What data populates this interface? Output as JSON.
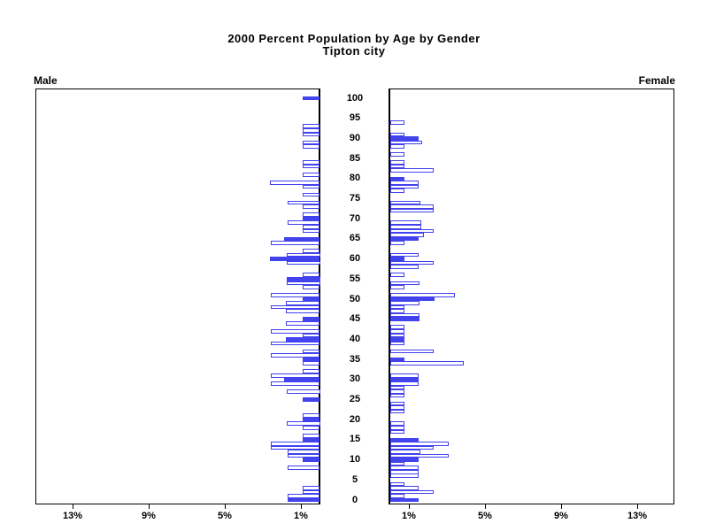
{
  "title": {
    "line1": "2000 Percent Population by Age by Gender",
    "line2": "Tipton city"
  },
  "panel_labels": {
    "left": "Male",
    "right": "Female"
  },
  "axes": {
    "age_axis_labels": [
      0,
      5,
      10,
      15,
      20,
      25,
      30,
      35,
      40,
      45,
      50,
      55,
      60,
      65,
      70,
      75,
      80,
      85,
      90,
      95,
      100
    ],
    "pct_ticks": [
      {
        "value": 1,
        "label": "1%"
      },
      {
        "value": 5,
        "label": "5%"
      },
      {
        "value": 9,
        "label": "9%"
      },
      {
        "value": 13,
        "label": "13%"
      }
    ],
    "pct_axis_max": 15
  },
  "colors": {
    "bar_fill": "#4343ee",
    "bar_outline": "#4141ee",
    "axis": "#000000",
    "background": "#ffffff",
    "text": "#000000"
  },
  "chart_data": {
    "type": "bar",
    "subtype": "population-pyramid",
    "title": "2000 Percent Population by Age by Gender",
    "subtitle": "Tipton city",
    "orientation": "horizontal-mirrored",
    "x_unit": "percent of population",
    "xlim_each_side": [
      0,
      15
    ],
    "x_tick_values": [
      1,
      5,
      9,
      13
    ],
    "age_note": "array index = age in single years, 0 through 100; bars at ages divisible by 5 are solid blue, others are blue-outlined white; value 0 means no bar drawn",
    "series": [
      {
        "name": "Male",
        "side": "left",
        "values": [
          1.7,
          1.7,
          0.9,
          0.9,
          0,
          0,
          0,
          0,
          1.7,
          0,
          0.9,
          1.7,
          1.7,
          2.6,
          2.6,
          0.9,
          0.9,
          0,
          0.9,
          1.75,
          0.9,
          0.9,
          0,
          0,
          0,
          0.9,
          0,
          1.75,
          0,
          2.6,
          1.9,
          2.6,
          0.9,
          0,
          0.9,
          0.9,
          2.6,
          0.9,
          0,
          2.6,
          1.8,
          0.9,
          2.6,
          0,
          1.8,
          0.9,
          0,
          1.8,
          2.6,
          1.8,
          0.9,
          2.6,
          0,
          0.9,
          1.75,
          1.75,
          0.9,
          0,
          0,
          1.75,
          2.65,
          1.75,
          0.9,
          0,
          2.6,
          1.9,
          0,
          0.9,
          0.9,
          1.7,
          0.9,
          0.9,
          0,
          0.9,
          1.7,
          0,
          0.9,
          0,
          0.9,
          2.65,
          0,
          0.9,
          0,
          0.9,
          0.9,
          0,
          0,
          0,
          0.9,
          0.9,
          0,
          0.9,
          0.9,
          0.9,
          0,
          0,
          0,
          0,
          0,
          0,
          0.9
        ]
      },
      {
        "name": "Female",
        "side": "right",
        "values": [
          1.5,
          0.75,
          2.3,
          1.5,
          0.75,
          0,
          1.5,
          1.5,
          1.5,
          0.75,
          1.5,
          3.1,
          1.6,
          2.3,
          3.1,
          1.5,
          0,
          0.75,
          0.75,
          0.75,
          0,
          0,
          0.75,
          0.75,
          0.75,
          0,
          0.75,
          0.75,
          0.75,
          1.5,
          1.5,
          1.5,
          0,
          0,
          3.9,
          0.75,
          0,
          2.3,
          0,
          0.75,
          0.75,
          0.75,
          0.75,
          0.75,
          0,
          1.55,
          1.55,
          0.75,
          0.75,
          1.55,
          2.35,
          3.4,
          0,
          0.75,
          1.55,
          0,
          0.75,
          0,
          1.5,
          2.3,
          0.75,
          1.5,
          0,
          0,
          0.75,
          1.5,
          1.8,
          2.3,
          1.65,
          1.65,
          0,
          0,
          2.3,
          2.3,
          1.6,
          0,
          0,
          0.75,
          1.5,
          1.5,
          0.75,
          0,
          2.3,
          0.75,
          0.75,
          0,
          0.75,
          0,
          0.75,
          1.7,
          1.5,
          0.75,
          0,
          0,
          0.75,
          0,
          0,
          0,
          0,
          0,
          0
        ]
      }
    ]
  }
}
